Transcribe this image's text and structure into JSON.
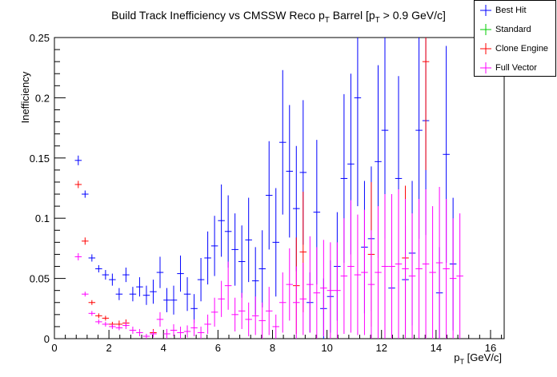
{
  "chart_data": {
    "type": "scatter",
    "title": "Build Track Inefficiency vs CMSSW Reco p",
    "title_sub": "T",
    "title_tail": " Barrel [p",
    "title_sub2": "T",
    "title_end": " > 0.9 GeV/c]",
    "xlabel": "p",
    "xlabel_sub": "T",
    "xlabel_tail": " [GeV/c]",
    "ylabel": "Inefficiency",
    "xlim": [
      0,
      16.5
    ],
    "ylim": [
      0,
      0.25
    ],
    "x_ticks": [
      "0",
      "2",
      "4",
      "6",
      "8",
      "10",
      "12",
      "14",
      "16"
    ],
    "y_ticks": [
      "0",
      "0.05",
      "0.1",
      "0.15",
      "0.2",
      "0.25"
    ],
    "legend_position": "top-right",
    "bin_halfwidth": 0.125,
    "series": [
      {
        "name": "Best Hit",
        "color": "#0000ff",
        "points": [
          [
            0.875,
            0.148,
            0.004
          ],
          [
            1.125,
            0.12,
            0.003
          ],
          [
            1.375,
            0.067,
            0.003
          ],
          [
            1.625,
            0.058,
            0.003
          ],
          [
            1.875,
            0.053,
            0.004
          ],
          [
            2.125,
            0.049,
            0.005
          ],
          [
            2.375,
            0.037,
            0.005
          ],
          [
            2.625,
            0.053,
            0.006
          ],
          [
            2.875,
            0.037,
            0.006
          ],
          [
            3.125,
            0.043,
            0.008
          ],
          [
            3.375,
            0.036,
            0.008
          ],
          [
            3.625,
            0.039,
            0.01
          ],
          [
            3.875,
            0.055,
            0.013
          ],
          [
            4.125,
            0.032,
            0.01
          ],
          [
            4.375,
            0.032,
            0.012
          ],
          [
            4.625,
            0.054,
            0.015
          ],
          [
            4.875,
            0.037,
            0.014
          ],
          [
            5.125,
            0.025,
            0.012
          ],
          [
            5.375,
            0.049,
            0.018
          ],
          [
            5.625,
            0.067,
            0.022
          ],
          [
            5.875,
            0.077,
            0.025
          ],
          [
            6.125,
            0.098,
            0.03
          ],
          [
            6.375,
            0.089,
            0.03
          ],
          [
            6.625,
            0.074,
            0.03
          ],
          [
            6.875,
            0.064,
            0.03
          ],
          [
            7.125,
            0.082,
            0.035
          ],
          [
            7.375,
            0.048,
            0.028
          ],
          [
            7.625,
            0.058,
            0.032
          ],
          [
            7.875,
            0.119,
            0.045
          ],
          [
            8.125,
            0.08,
            0.045
          ],
          [
            8.375,
            0.163,
            0.06
          ],
          [
            8.625,
            0.139,
            0.055
          ],
          [
            8.875,
            0.108,
            0.052
          ],
          [
            9.125,
            0.138,
            0.06
          ],
          [
            9.375,
            0.03,
            0.025
          ],
          [
            9.625,
            0.105,
            0.06
          ],
          [
            9.875,
            0.025,
            0.025
          ],
          [
            10.125,
            0.035,
            0.03
          ],
          [
            10.375,
            0.06,
            0.045
          ],
          [
            10.625,
            0.133,
            0.07
          ],
          [
            10.875,
            0.145,
            0.075
          ],
          [
            11.125,
            0.2,
            0.09
          ],
          [
            11.375,
            0.076,
            0.055
          ],
          [
            11.625,
            0.083,
            0.06
          ],
          [
            11.875,
            0.147,
            0.08
          ],
          [
            12.125,
            0.173,
            0.09
          ],
          [
            12.375,
            0.042,
            0.04
          ],
          [
            12.625,
            0.133,
            0.085
          ],
          [
            12.875,
            0.049,
            0.045
          ],
          [
            13.125,
            0.071,
            0.06
          ],
          [
            13.375,
            0.173,
            0.09
          ],
          [
            13.625,
            0.181,
            0.095
          ],
          [
            14.125,
            0.038,
            0.038
          ],
          [
            14.375,
            0.153,
            0.09
          ],
          [
            14.625,
            0.062,
            0.055
          ]
        ]
      },
      {
        "name": "Standard",
        "color": "#00cc00",
        "points": []
      },
      {
        "name": "Clone Engine",
        "color": "#ff0000",
        "points": [
          [
            0.875,
            0.128,
            0.003
          ],
          [
            1.125,
            0.081,
            0.003
          ],
          [
            1.375,
            0.03,
            0.002
          ],
          [
            1.625,
            0.019,
            0.002
          ],
          [
            1.875,
            0.017,
            0.002
          ],
          [
            2.125,
            0.012,
            0.002
          ],
          [
            2.375,
            0.012,
            0.003
          ],
          [
            2.625,
            0.013,
            0.003
          ],
          [
            3.625,
            0.005,
            0.003
          ],
          [
            8.875,
            0.044,
            0.04
          ],
          [
            9.125,
            0.072,
            0.05
          ],
          [
            11.625,
            0.07,
            0.06
          ],
          [
            12.875,
            0.067,
            0.06
          ],
          [
            13.625,
            0.23,
            0.09
          ]
        ]
      },
      {
        "name": "Full Vector",
        "color": "#ff00ff",
        "points": [
          [
            0.875,
            0.068,
            0.003
          ],
          [
            1.125,
            0.037,
            0.002
          ],
          [
            1.375,
            0.021,
            0.002
          ],
          [
            1.625,
            0.014,
            0.002
          ],
          [
            1.875,
            0.012,
            0.002
          ],
          [
            2.125,
            0.01,
            0.002
          ],
          [
            2.375,
            0.009,
            0.002
          ],
          [
            2.625,
            0.011,
            0.003
          ],
          [
            2.875,
            0.007,
            0.003
          ],
          [
            3.125,
            0.005,
            0.003
          ],
          [
            3.375,
            0.002,
            0.002
          ],
          [
            3.625,
            0.004,
            0.003
          ],
          [
            3.875,
            0.016,
            0.006
          ],
          [
            4.125,
            0.004,
            0.004
          ],
          [
            4.375,
            0.007,
            0.005
          ],
          [
            4.625,
            0.005,
            0.005
          ],
          [
            4.875,
            0.006,
            0.005
          ],
          [
            5.125,
            0.009,
            0.007
          ],
          [
            5.375,
            0.005,
            0.005
          ],
          [
            5.625,
            0.012,
            0.008
          ],
          [
            5.875,
            0.022,
            0.012
          ],
          [
            6.125,
            0.033,
            0.015
          ],
          [
            6.375,
            0.044,
            0.02
          ],
          [
            6.625,
            0.02,
            0.014
          ],
          [
            6.875,
            0.023,
            0.015
          ],
          [
            7.125,
            0.016,
            0.014
          ],
          [
            7.375,
            0.019,
            0.016
          ],
          [
            7.625,
            0.015,
            0.015
          ],
          [
            7.875,
            0.023,
            0.02
          ],
          [
            8.125,
            0.01,
            0.01
          ],
          [
            8.375,
            0.03,
            0.025
          ],
          [
            8.625,
            0.045,
            0.03
          ],
          [
            8.875,
            0.03,
            0.03
          ],
          [
            9.125,
            0.033,
            0.03
          ],
          [
            9.375,
            0.045,
            0.04
          ],
          [
            9.625,
            0.038,
            0.038
          ],
          [
            9.875,
            0.042,
            0.04
          ],
          [
            10.125,
            0.04,
            0.04
          ],
          [
            10.375,
            0.04,
            0.04
          ],
          [
            10.625,
            0.052,
            0.048
          ],
          [
            10.875,
            0.06,
            0.055
          ],
          [
            11.125,
            0.053,
            0.05
          ],
          [
            11.375,
            0.055,
            0.052
          ],
          [
            11.625,
            0.045,
            0.045
          ],
          [
            11.875,
            0.055,
            0.055
          ],
          [
            12.125,
            0.06,
            0.06
          ],
          [
            12.375,
            0.06,
            0.06
          ],
          [
            12.625,
            0.062,
            0.062
          ],
          [
            12.875,
            0.058,
            0.058
          ],
          [
            13.125,
            0.052,
            0.052
          ],
          [
            13.375,
            0.058,
            0.058
          ],
          [
            13.625,
            0.062,
            0.062
          ],
          [
            13.875,
            0.055,
            0.055
          ],
          [
            14.125,
            0.063,
            0.063
          ],
          [
            14.375,
            0.058,
            0.058
          ],
          [
            14.625,
            0.05,
            0.05
          ],
          [
            14.875,
            0.052,
            0.052
          ]
        ]
      }
    ]
  }
}
